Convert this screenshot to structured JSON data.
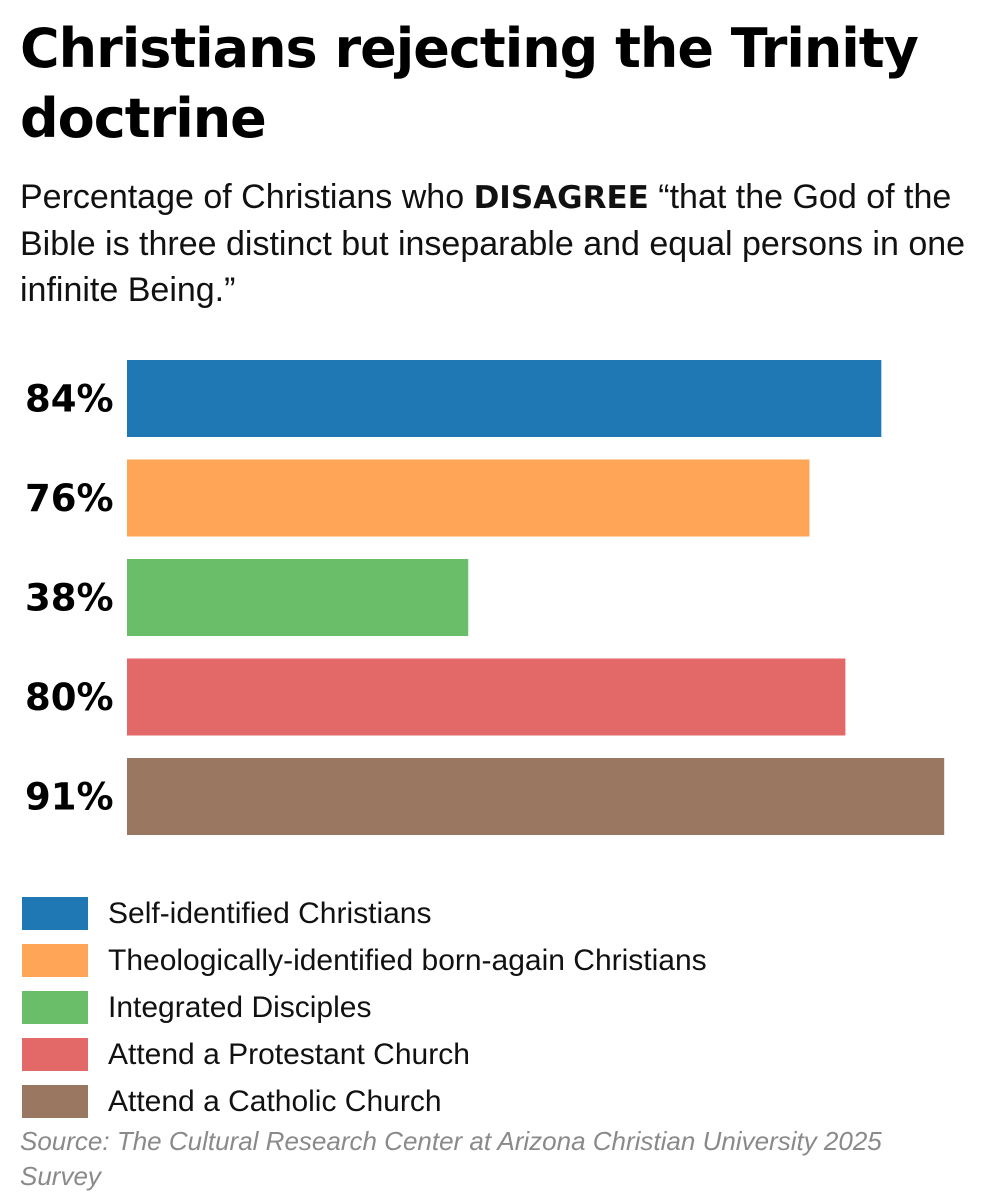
{
  "title": "Christians rejecting the Trinity doctrine",
  "subtitle": {
    "before": "Percentage of Christians who ",
    "emphasis": "DISAGREE",
    "after": " “that the God of the Bible is three distinct but inseparable and equal persons in one infinite Being.”"
  },
  "source": "Source: The Cultural Research Center at Arizona Christian University 2025 Survey",
  "chart_data": {
    "type": "bar",
    "orientation": "horizontal",
    "categories": [
      "Self-identified Christians",
      "Theologically-identified born-again Christians",
      "Integrated Disciples",
      "Attend a Protestant Church",
      "Attend a Catholic Church"
    ],
    "values": [
      84,
      76,
      38,
      80,
      91
    ],
    "value_labels": [
      "84%",
      "76%",
      "38%",
      "80%",
      "91%"
    ],
    "colors": [
      "#1f77b4",
      "#ffa557",
      "#6abe6a",
      "#e36969",
      "#9a7761"
    ],
    "grid": false,
    "legend_position": "bottom"
  }
}
